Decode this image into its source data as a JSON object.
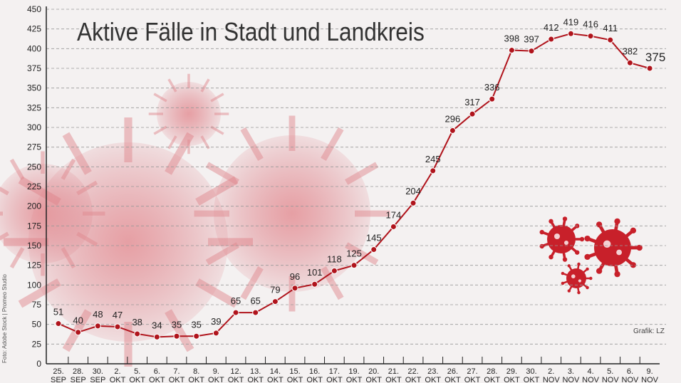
{
  "chart_data": {
    "type": "line",
    "title": "Aktive Fälle in Stadt und Landkreis",
    "categories": [
      [
        "25.",
        "SEP"
      ],
      [
        "28.",
        "SEP"
      ],
      [
        "30.",
        "SEP"
      ],
      [
        "2.",
        "OKT"
      ],
      [
        "5.",
        "OKT"
      ],
      [
        "6.",
        "OKT"
      ],
      [
        "7.",
        "OKT"
      ],
      [
        "8.",
        "OKT"
      ],
      [
        "9.",
        "OKT"
      ],
      [
        "12.",
        "OKT"
      ],
      [
        "13.",
        "OKT"
      ],
      [
        "14.",
        "OKT"
      ],
      [
        "15.",
        "OKT"
      ],
      [
        "16.",
        "OKT"
      ],
      [
        "17.",
        "OKT"
      ],
      [
        "19.",
        "OKT"
      ],
      [
        "20.",
        "OKT"
      ],
      [
        "21.",
        "OKT"
      ],
      [
        "22.",
        "OKT"
      ],
      [
        "23.",
        "OKT"
      ],
      [
        "26.",
        "OKT"
      ],
      [
        "27.",
        "OKT"
      ],
      [
        "28.",
        "OKT"
      ],
      [
        "29.",
        "OKT"
      ],
      [
        "30.",
        "OKT"
      ],
      [
        "2.",
        "NOV"
      ],
      [
        "3.",
        "NOV"
      ],
      [
        "4.",
        "NOV"
      ],
      [
        "5.",
        "NOV"
      ],
      [
        "6.",
        "NOV"
      ],
      [
        "9.",
        "NOV"
      ]
    ],
    "values": [
      51,
      40,
      48,
      47,
      38,
      34,
      35,
      35,
      39,
      65,
      65,
      79,
      96,
      101,
      118,
      125,
      145,
      174,
      204,
      245,
      296,
      317,
      336,
      398,
      397,
      412,
      419,
      416,
      411,
      382,
      375
    ],
    "ylim": [
      0,
      450
    ],
    "yticks": [
      0,
      25,
      50,
      75,
      100,
      125,
      150,
      175,
      200,
      225,
      250,
      275,
      300,
      325,
      350,
      375,
      400,
      425,
      450
    ],
    "grid": true,
    "line_color": "#b0141c"
  },
  "credits": {
    "photo": "Foto: Adobe Stock | Promeo Studio",
    "graphic": "Grafik: LZ"
  }
}
